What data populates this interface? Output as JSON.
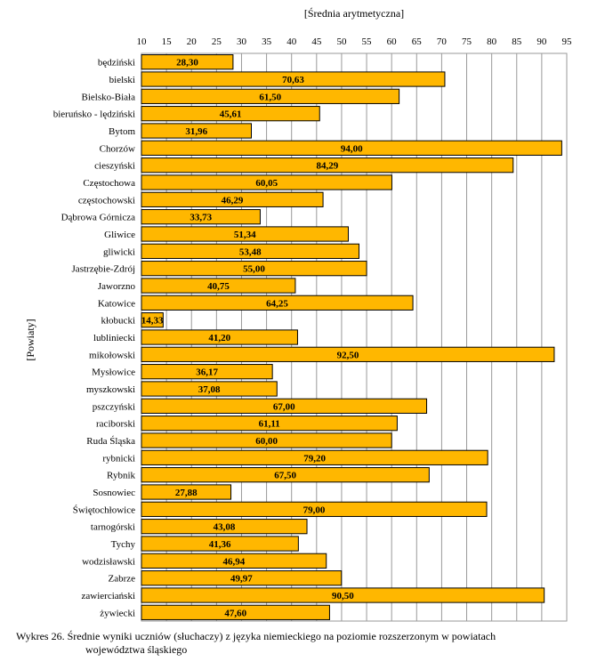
{
  "chart_data": {
    "type": "bar",
    "orientation": "horizontal",
    "x_axis_title": "[Średnia arytmetyczna]",
    "y_axis_title": "[Powiaty]",
    "xlim": [
      10,
      95
    ],
    "x_ticks": [
      10,
      15,
      20,
      25,
      30,
      35,
      40,
      45,
      50,
      55,
      60,
      65,
      70,
      75,
      80,
      85,
      90,
      95
    ],
    "tick_position": "top",
    "grid": true,
    "bar_color": "#FFB700",
    "categories": [
      "będziński",
      "bielski",
      "Bielsko-Biała",
      "bieruńsko - lędziński",
      "Bytom",
      "Chorzów",
      "cieszyński",
      "Częstochowa",
      "częstochowski",
      "Dąbrowa Górnicza",
      "Gliwice",
      "gliwicki",
      "Jastrzębie-Zdrój",
      "Jaworzno",
      "Katowice",
      "kłobucki",
      "lubliniecki",
      "mikołowski",
      "Mysłowice",
      "myszkowski",
      "pszczyński",
      "raciborski",
      "Ruda Śląska",
      "rybnicki",
      "Rybnik",
      "Sosnowiec",
      "Świętochłowice",
      "tarnogórski",
      "Tychy",
      "wodzisławski",
      "Zabrze",
      "zawierciański",
      "żywiecki"
    ],
    "values": [
      28.3,
      70.63,
      61.5,
      45.61,
      31.96,
      94.0,
      84.29,
      60.05,
      46.29,
      33.73,
      51.34,
      53.48,
      55.0,
      40.75,
      64.25,
      14.33,
      41.2,
      92.5,
      36.17,
      37.08,
      67.0,
      61.11,
      60.0,
      79.2,
      67.5,
      27.88,
      79.0,
      43.08,
      41.36,
      46.94,
      49.97,
      90.5,
      47.6
    ],
    "value_labels": [
      "28,30",
      "70,63",
      "61,50",
      "45,61",
      "31,96",
      "94,00",
      "84,29",
      "60,05",
      "46,29",
      "33,73",
      "51,34",
      "53,48",
      "55,00",
      "40,75",
      "64,25",
      "14,33",
      "41,20",
      "92,50",
      "36,17",
      "37,08",
      "67,00",
      "61,11",
      "60,00",
      "79,20",
      "67,50",
      "27,88",
      "79,00",
      "43,08",
      "41,36",
      "46,94",
      "49,97",
      "90,50",
      "47,60"
    ]
  },
  "caption": {
    "number": "Wykres 26.",
    "line1": "Średnie wyniki uczniów (słuchaczy) z języka niemieckiego na poziomie rozszerzonym w powiatach",
    "line2": "województwa śląskiego"
  }
}
